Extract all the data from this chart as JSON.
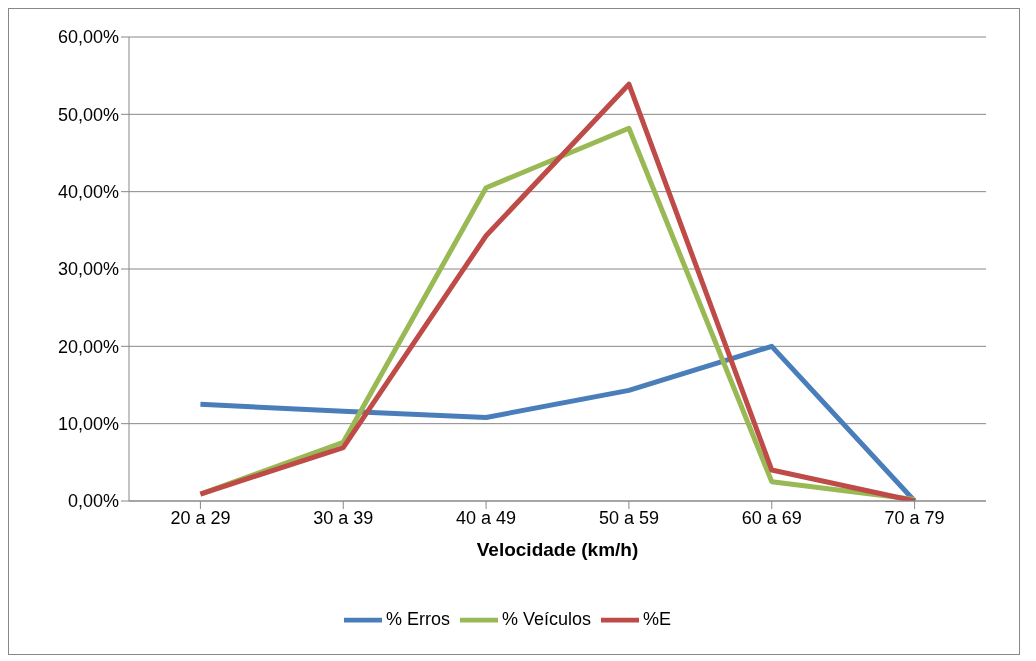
{
  "chart_data": {
    "type": "line",
    "xlabel": "Velocidade (km/h)",
    "categories": [
      "20 a 29",
      "30 a 39",
      "40 a 49",
      "50 a 59",
      "60 a 69",
      "70 a 79"
    ],
    "series": [
      {
        "name": "% Erros",
        "color": "#4a7ebb",
        "values": [
          12.5,
          11.6,
          10.8,
          14.3,
          20.0,
          0
        ]
      },
      {
        "name": "% Veículos",
        "color": "#98b954",
        "values": [
          0.9,
          7.6,
          40.5,
          48.2,
          2.5,
          0.2
        ]
      },
      {
        "name": "%E",
        "color": "#be4b48",
        "values": [
          0.9,
          6.9,
          34.3,
          53.9,
          4.0,
          0
        ]
      }
    ],
    "ylim": [
      0,
      60
    ],
    "yticks": [
      {
        "value": 0,
        "label": "0,00%"
      },
      {
        "value": 10,
        "label": "10,00%"
      },
      {
        "value": 20,
        "label": "20,00%"
      },
      {
        "value": 30,
        "label": "30,00%"
      },
      {
        "value": 40,
        "label": "40,00%"
      },
      {
        "value": 50,
        "label": "50,00%"
      },
      {
        "value": 60,
        "label": "60,00%"
      }
    ],
    "grid": "y",
    "legend": "bottom",
    "marker": "none",
    "line_style": "solid"
  }
}
